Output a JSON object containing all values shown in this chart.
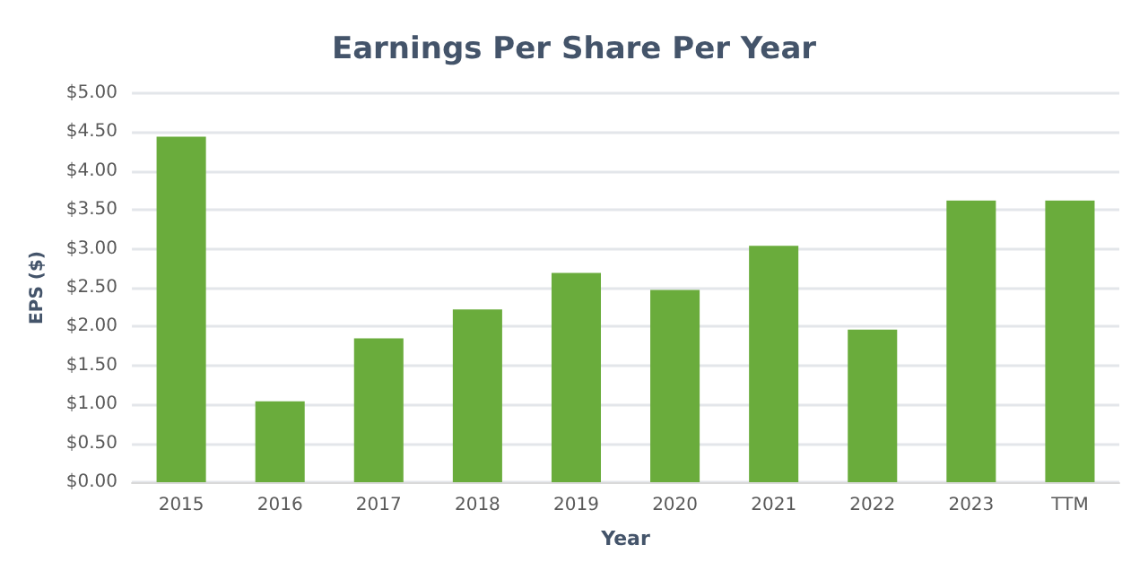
{
  "chart_data": {
    "type": "bar",
    "title": "Earnings Per Share Per Year",
    "xlabel": "Year",
    "ylabel": "EPS ($)",
    "categories": [
      "2015",
      "2016",
      "2017",
      "2018",
      "2019",
      "2020",
      "2021",
      "2022",
      "2023",
      "TTM"
    ],
    "values": [
      4.44,
      1.04,
      1.85,
      2.22,
      2.69,
      2.47,
      3.04,
      1.96,
      3.62,
      3.62
    ],
    "color": "#6aac3c",
    "ylim": [
      0,
      5
    ],
    "yticks": [
      {
        "value": 0,
        "label": "$0.00"
      },
      {
        "value": 0.5,
        "label": "$0.50"
      },
      {
        "value": 1,
        "label": "$1.00"
      },
      {
        "value": 1.5,
        "label": "$1.50"
      },
      {
        "value": 2,
        "label": "$2.00"
      },
      {
        "value": 2.5,
        "label": "$2.50"
      },
      {
        "value": 3,
        "label": "$3.00"
      },
      {
        "value": 3.5,
        "label": "$3.50"
      },
      {
        "value": 4,
        "label": "$4.00"
      },
      {
        "value": 4.5,
        "label": "$4.50"
      },
      {
        "value": 5,
        "label": "$5.00"
      }
    ],
    "grid": true
  }
}
